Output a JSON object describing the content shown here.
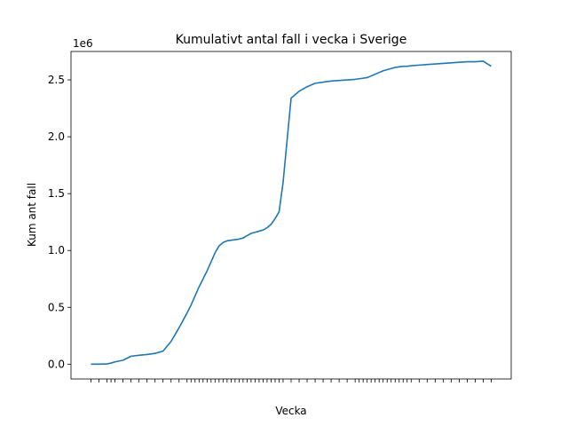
{
  "chart_data": {
    "type": "line",
    "title": "Kumulativt antal fall i vecka i Sverige",
    "xlabel": "Vecka",
    "ylabel": "Kum ant fall",
    "y_offset_label": "1e6",
    "y_ticks": [
      "0.0",
      "0.5",
      "1.0",
      "1.5",
      "2.0",
      "2.5"
    ],
    "ylim": [
      -0.13,
      2.75
    ],
    "xlim": [
      -5,
      105
    ],
    "grid": false,
    "color": "#1f77b4",
    "series": [
      {
        "x": [
          0,
          2,
          4,
          5,
          6,
          8,
          10,
          12,
          14,
          16,
          18,
          20,
          22,
          24,
          25,
          26,
          27,
          28,
          29,
          30,
          31,
          32,
          33,
          34,
          35,
          36,
          37,
          38,
          39,
          40,
          41,
          42,
          43,
          44,
          45,
          46,
          47,
          48,
          50,
          52,
          54,
          56,
          58,
          60,
          62,
          64,
          66,
          67,
          68,
          69,
          70,
          71,
          72,
          73,
          74,
          75,
          76,
          77,
          78,
          79,
          80,
          82,
          84,
          86,
          88,
          90,
          92,
          94,
          96,
          98,
          100
        ],
        "y": [
          0.0,
          0.0,
          0.002,
          0.01,
          0.02,
          0.035,
          0.07,
          0.078,
          0.085,
          0.095,
          0.115,
          0.2,
          0.32,
          0.45,
          0.52,
          0.6,
          0.68,
          0.75,
          0.82,
          0.9,
          0.98,
          1.04,
          1.07,
          1.085,
          1.09,
          1.095,
          1.1,
          1.11,
          1.13,
          1.15,
          1.16,
          1.17,
          1.18,
          1.2,
          1.23,
          1.28,
          1.34,
          1.6,
          2.34,
          2.4,
          2.44,
          2.47,
          2.48,
          2.49,
          2.495,
          2.5,
          2.505,
          2.51,
          2.515,
          2.52,
          2.535,
          2.55,
          2.565,
          2.58,
          2.59,
          2.6,
          2.61,
          2.615,
          2.62,
          2.62,
          2.625,
          2.63,
          2.635,
          2.64,
          2.645,
          2.65,
          2.655,
          2.66,
          2.66,
          2.665,
          2.62
        ]
      }
    ]
  }
}
